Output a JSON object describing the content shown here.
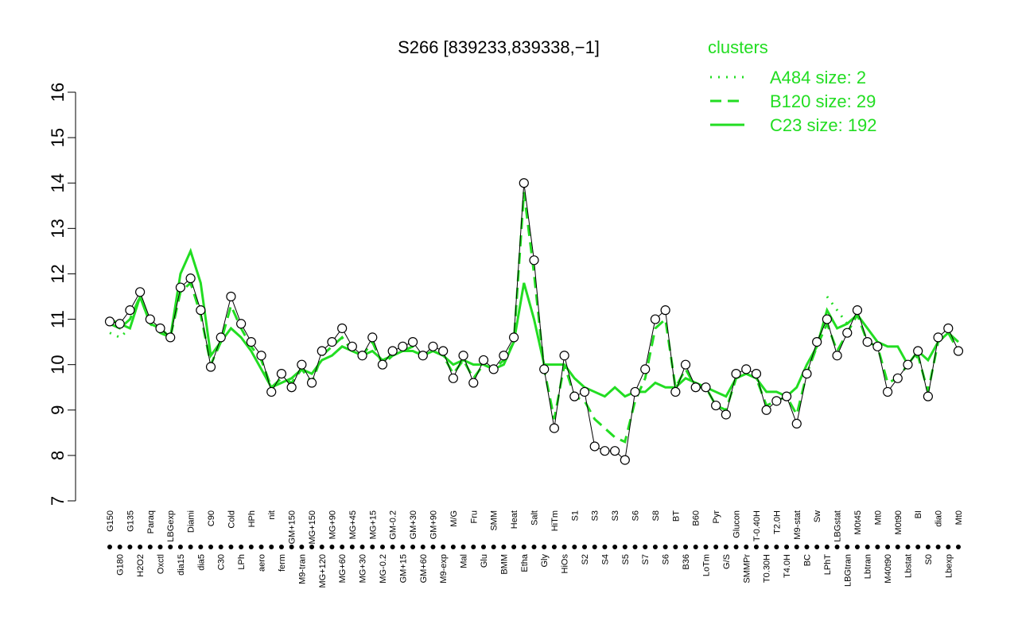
{
  "chart_data": {
    "type": "line",
    "title": "S266 [839233,839338,−1]",
    "legend_title": "clusters",
    "legend_position": "top-right",
    "categories": [
      "G150",
      "G180",
      "G135",
      "H2O2",
      "Paraq",
      "Oxctl",
      "LBGexp",
      "dia15",
      "Diami",
      "dia5",
      "C90",
      "C30",
      "Cold",
      "LPh",
      "HPh",
      "aero",
      "nit",
      "ferm",
      "GM+150",
      "M9-tran",
      "MG+150",
      "MG+120",
      "MG+90",
      "MG+60",
      "MG+45",
      "MG+30",
      "MG+15",
      "MG-0.2",
      "GM-0.2",
      "GM+15",
      "GM+30",
      "GM+60",
      "GM+90",
      "M9-exp",
      "M/G",
      "Mal",
      "Fru",
      "Glu",
      "SMM",
      "BMM",
      "Heat",
      "Etha",
      "Salt",
      "Gly",
      "HiTm",
      "HiOs",
      "S1",
      "S2",
      "S3",
      "S4",
      "S3",
      "S5",
      "S6",
      "S7",
      "S8",
      "S6",
      "BT",
      "B36",
      "B60",
      "LoTm",
      "Pyr",
      "G/S",
      "Glucon",
      "SMMPr",
      "T-0.40H",
      "T0.30H",
      "T2.0H",
      "T4.0H",
      "M9-stat",
      "BC",
      "Sw",
      "LPhT",
      "LBGstat",
      "LBGtran",
      "M0t45",
      "Lbtran",
      "Mt0",
      "M40t90",
      "M0t90",
      "Lbstat",
      "BI",
      "S0",
      "dia0",
      "Lbexp",
      "Mt0"
    ],
    "series": [
      {
        "name": "A484 size: 2",
        "color": "#22dd22",
        "style": "dotted",
        "values": [
          10.7,
          10.6,
          10.8,
          null,
          null,
          null,
          null,
          null,
          null,
          null,
          null,
          null,
          null,
          null,
          null,
          null,
          null,
          null,
          null,
          null,
          null,
          null,
          null,
          null,
          null,
          null,
          null,
          null,
          null,
          null,
          null,
          null,
          null,
          null,
          null,
          null,
          null,
          null,
          null,
          null,
          null,
          null,
          null,
          null,
          null,
          null,
          null,
          null,
          null,
          null,
          null,
          null,
          null,
          null,
          null,
          null,
          null,
          null,
          null,
          null,
          null,
          null,
          null,
          null,
          null,
          null,
          null,
          null,
          null,
          null,
          null,
          11.5,
          11.2,
          10.9,
          null,
          null,
          null,
          null,
          null,
          null,
          null,
          null,
          null,
          null,
          null
        ]
      },
      {
        "name": "B120 size: 29",
        "color": "#22dd22",
        "style": "dashed",
        "values": [
          10.9,
          10.8,
          11.0,
          11.5,
          10.9,
          10.7,
          10.6,
          11.6,
          11.8,
          11.1,
          10.0,
          10.5,
          11.3,
          10.8,
          10.4,
          10.1,
          9.5,
          9.7,
          9.6,
          9.9,
          9.6,
          10.2,
          10.4,
          10.6,
          10.3,
          10.2,
          10.5,
          10.0,
          10.2,
          10.3,
          10.4,
          10.2,
          10.3,
          10.2,
          9.8,
          10.1,
          9.7,
          10.0,
          9.9,
          10.1,
          10.5,
          13.8,
          12.0,
          9.9,
          8.8,
          10.0,
          9.3,
          9.2,
          8.8,
          8.6,
          8.4,
          8.3,
          9.2,
          9.7,
          10.8,
          11.0,
          9.5,
          9.9,
          9.5,
          9.5,
          9.1,
          9.0,
          9.7,
          9.8,
          9.7,
          9.1,
          9.2,
          9.3,
          8.9,
          9.8,
          10.4,
          10.9,
          10.3,
          10.7,
          11.1,
          10.5,
          10.4,
          9.6,
          9.7,
          10.0,
          10.2,
          9.4,
          10.5,
          10.7,
          10.3
        ]
      },
      {
        "name": "C23 size: 192",
        "color": "#22dd22",
        "style": "solid",
        "values": [
          11.0,
          10.9,
          10.8,
          11.5,
          10.9,
          10.8,
          10.6,
          12.0,
          12.5,
          11.8,
          10.2,
          10.5,
          10.8,
          10.6,
          10.3,
          9.9,
          9.5,
          9.6,
          9.7,
          9.9,
          9.8,
          10.1,
          10.2,
          10.4,
          10.3,
          10.2,
          10.3,
          10.1,
          10.2,
          10.3,
          10.3,
          10.2,
          10.3,
          10.2,
          10.0,
          10.1,
          10.0,
          10.0,
          9.9,
          10.0,
          10.5,
          11.8,
          11.0,
          10.0,
          10.0,
          10.0,
          9.7,
          9.5,
          9.4,
          9.3,
          9.5,
          9.3,
          9.4,
          9.4,
          9.6,
          9.5,
          9.5,
          9.7,
          9.6,
          9.5,
          9.4,
          9.3,
          9.7,
          9.8,
          9.7,
          9.4,
          9.4,
          9.3,
          9.5,
          10.0,
          10.4,
          11.2,
          10.8,
          10.9,
          11.1,
          10.8,
          10.5,
          10.4,
          10.4,
          10.0,
          10.3,
          10.1,
          10.5,
          10.7,
          10.5
        ]
      }
    ],
    "points": {
      "color": "#000000",
      "values": [
        10.95,
        10.9,
        11.2,
        11.6,
        11.0,
        10.8,
        10.6,
        11.7,
        11.9,
        11.2,
        9.95,
        10.6,
        11.5,
        10.9,
        10.5,
        10.2,
        9.4,
        9.8,
        9.5,
        10.0,
        9.6,
        10.3,
        10.5,
        10.8,
        10.4,
        10.2,
        10.6,
        10.0,
        10.3,
        10.4,
        10.5,
        10.2,
        10.4,
        10.3,
        9.7,
        10.2,
        9.6,
        10.1,
        9.9,
        10.2,
        10.6,
        14.0,
        12.3,
        9.9,
        8.6,
        10.2,
        9.3,
        9.4,
        8.2,
        8.1,
        8.1,
        7.9,
        9.4,
        9.9,
        11.0,
        11.2,
        9.4,
        10.0,
        9.5,
        9.5,
        9.1,
        8.9,
        9.8,
        9.9,
        9.8,
        9.0,
        9.2,
        9.3,
        8.7,
        9.8,
        10.5,
        11.0,
        10.2,
        10.7,
        11.2,
        10.5,
        10.4,
        9.4,
        9.7,
        10.0,
        10.3,
        9.3,
        10.6,
        10.8,
        10.3
      ]
    },
    "ylim": [
      7,
      16
    ],
    "yticks": [
      7,
      8,
      9,
      10,
      11,
      12,
      13,
      14,
      15,
      16
    ],
    "grid": false
  }
}
